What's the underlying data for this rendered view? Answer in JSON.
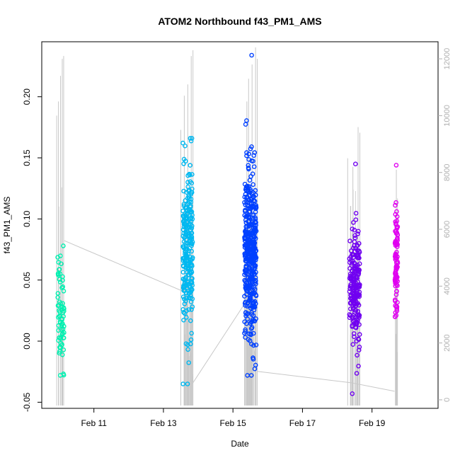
{
  "chart_data": {
    "type": "scatter",
    "title": "ATOM2 Northbound f43_PM1_AMS",
    "xlabel": "Date",
    "ylabel": "f43_PM1_AMS",
    "x_ticks": [
      "Feb 11",
      "Feb 13",
      "Feb 15",
      "Feb 17",
      "Feb 19"
    ],
    "x_tick_days": [
      11,
      13,
      15,
      17,
      19
    ],
    "xlim_days": [
      9.5,
      20.9
    ],
    "y_ticks": [
      -0.05,
      0.0,
      0.05,
      0.1,
      0.15,
      0.2
    ],
    "y_tick_labels": [
      "-0.05",
      "0.00",
      "0.05",
      "0.10",
      "0.15",
      "0.20"
    ],
    "ylim": [
      -0.055,
      0.245
    ],
    "y2_ticks": [
      0,
      2000,
      4000,
      6000,
      8000,
      10000,
      12000
    ],
    "y2_tick_labels": [
      "0",
      "2000",
      "4000",
      "6000",
      "8000",
      "10000",
      "12000"
    ],
    "y2lim": [
      -300,
      12600
    ],
    "grid": false,
    "legend": "none",
    "colors": {
      "points_start": "#00ffa8",
      "points_mid1": "#00c0ff",
      "points_mid2": "#0040ff",
      "points_mid3": "#7000ff",
      "points_end": "#ff00ff",
      "secondary_series": "#c8c8c8"
    },
    "clusters": [
      {
        "day_center": 10.05,
        "day_spread": 0.09,
        "y_min": -0.028,
        "y_max": 0.078,
        "y_mean": 0.022,
        "y_sd": 0.022,
        "count": 70,
        "color": "#00f0b0"
      },
      {
        "day_center": 13.7,
        "day_spread": 0.14,
        "y_min": -0.035,
        "y_max": 0.166,
        "y_mean": 0.075,
        "y_sd": 0.032,
        "count": 260,
        "color": "#00b8f0"
      },
      {
        "day_center": 15.5,
        "day_spread": 0.17,
        "y_min": -0.028,
        "y_max": 0.234,
        "y_mean": 0.07,
        "y_sd": 0.035,
        "count": 420,
        "color": "#0040ff"
      },
      {
        "day_center": 18.5,
        "day_spread": 0.15,
        "y_min": -0.043,
        "y_max": 0.145,
        "y_mean": 0.045,
        "y_sd": 0.025,
        "count": 200,
        "color": "#7000f0"
      },
      {
        "day_center": 19.7,
        "day_spread": 0.04,
        "y_min": 0.02,
        "y_max": 0.144,
        "y_mean": 0.06,
        "y_sd": 0.024,
        "count": 100,
        "color": "#e000f0"
      }
    ],
    "secondary_series": {
      "description_axis": "right",
      "spikes": [
        {
          "day": 9.93,
          "top": 10000
        },
        {
          "day": 9.98,
          "top": 10500
        },
        {
          "day": 10.04,
          "top": 11400
        },
        {
          "day": 10.09,
          "top": 12000
        },
        {
          "day": 10.13,
          "top": 12100
        },
        {
          "day": 13.5,
          "top": 9500
        },
        {
          "day": 13.6,
          "top": 10700
        },
        {
          "day": 13.7,
          "top": 11100
        },
        {
          "day": 13.8,
          "top": 12100
        },
        {
          "day": 13.85,
          "top": 12300
        },
        {
          "day": 15.4,
          "top": 10500
        },
        {
          "day": 15.45,
          "top": 11300
        },
        {
          "day": 15.55,
          "top": 11800
        },
        {
          "day": 15.65,
          "top": 12400
        },
        {
          "day": 15.7,
          "top": 12000
        },
        {
          "day": 18.3,
          "top": 8500
        },
        {
          "day": 18.45,
          "top": 8200
        },
        {
          "day": 18.6,
          "top": 9600
        },
        {
          "day": 18.65,
          "top": 9400
        },
        {
          "day": 19.7,
          "top": 8100
        }
      ],
      "baseline_path": [
        {
          "day": 10.15,
          "value": 5600
        },
        {
          "day": 13.6,
          "value": 3800
        },
        {
          "day": 13.85,
          "value": 600
        },
        {
          "day": 15.4,
          "value": 3500
        },
        {
          "day": 15.7,
          "value": 1000
        },
        {
          "day": 18.4,
          "value": 600
        },
        {
          "day": 19.65,
          "value": 300
        }
      ]
    }
  }
}
